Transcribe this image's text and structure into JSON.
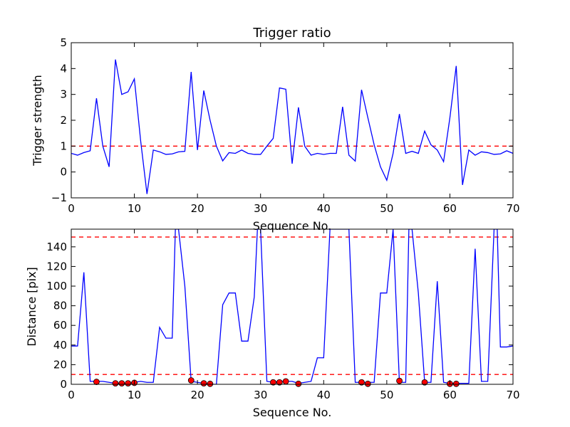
{
  "chart_data": [
    {
      "type": "line",
      "title": "Trigger ratio",
      "xlabel": "Sequence No.",
      "ylabel": "Trigger strength",
      "xlim": [
        0,
        70
      ],
      "ylim": [
        -1,
        5
      ],
      "xticks": [
        0,
        10,
        20,
        30,
        40,
        50,
        60,
        70
      ],
      "yticks": [
        -1,
        0,
        1,
        2,
        3,
        4,
        5
      ],
      "grid": false,
      "series": [
        {
          "color": "#0000ff",
          "x": [
            0,
            1,
            2,
            3,
            4,
            5,
            6,
            7,
            8,
            9,
            10,
            11,
            12,
            13,
            14,
            15,
            16,
            17,
            18,
            19,
            20,
            21,
            22,
            23,
            24,
            25,
            26,
            27,
            28,
            29,
            30,
            31,
            32,
            33,
            34,
            35,
            36,
            37,
            38,
            39,
            40,
            41,
            42,
            43,
            44,
            45,
            46,
            47,
            48,
            49,
            50,
            51,
            52,
            53,
            54,
            55,
            56,
            57,
            58,
            59,
            60,
            61,
            62,
            63,
            64,
            65,
            66,
            67,
            68,
            69,
            70
          ],
          "y": [
            0.72,
            0.65,
            0.75,
            0.82,
            2.85,
            1.0,
            0.2,
            4.35,
            3.0,
            3.1,
            3.6,
            1.2,
            -0.85,
            0.85,
            0.78,
            0.68,
            0.7,
            0.78,
            0.8,
            3.87,
            0.85,
            3.15,
            2.0,
            1.0,
            0.43,
            0.75,
            0.72,
            0.85,
            0.72,
            0.68,
            0.68,
            1.0,
            1.3,
            3.25,
            3.2,
            0.32,
            2.5,
            1.0,
            0.65,
            0.72,
            0.68,
            0.72,
            0.72,
            2.52,
            0.65,
            0.42,
            3.18,
            2.1,
            1.05,
            0.2,
            -0.32,
            0.72,
            2.24,
            0.72,
            0.8,
            0.72,
            1.58,
            1.05,
            0.85,
            0.4,
            2.1,
            4.1,
            -0.5,
            0.85,
            0.65,
            0.78,
            0.75,
            0.68,
            0.7,
            0.82,
            0.72
          ]
        }
      ],
      "reference_lines": [
        {
          "y": 1.0,
          "color": "#ff0000",
          "style": "dashed"
        }
      ]
    },
    {
      "type": "line",
      "title": "",
      "xlabel": "Sequence No.",
      "ylabel": "Distance [pix]",
      "xlim": [
        0,
        70
      ],
      "ylim": [
        0,
        158
      ],
      "xticks": [
        0,
        10,
        20,
        30,
        40,
        50,
        60,
        70
      ],
      "yticks": [
        0,
        20,
        40,
        60,
        80,
        100,
        120,
        140
      ],
      "grid": false,
      "series": [
        {
          "color": "#0000ff",
          "x": [
            0,
            1,
            2,
            3,
            4,
            5,
            6,
            7,
            8,
            9,
            10,
            11,
            12,
            13,
            14,
            15,
            16,
            16.5,
            17,
            18,
            19,
            20,
            21,
            22,
            23,
            24,
            25,
            26,
            27,
            28,
            29,
            29.5,
            30,
            31,
            32,
            33,
            34,
            35,
            36,
            37,
            38,
            39,
            40,
            41,
            42,
            43,
            44,
            45,
            46,
            47,
            48,
            49,
            50,
            51,
            52,
            53,
            53.5,
            54,
            55,
            56,
            57,
            58,
            59,
            60,
            61,
            62,
            63,
            64,
            65,
            66,
            67,
            67.5,
            68,
            69,
            70
          ],
          "y": [
            39,
            39,
            114,
            3,
            3,
            3,
            2,
            1,
            1,
            1,
            2,
            3,
            2,
            2,
            58,
            47,
            47,
            158,
            158,
            100,
            3,
            2,
            1,
            0,
            0,
            81,
            93,
            93,
            44,
            44,
            89,
            158,
            158,
            3,
            2,
            3,
            3,
            3,
            1,
            2,
            3,
            27,
            27,
            158,
            158,
            158,
            158,
            2,
            2,
            2,
            2,
            93,
            93,
            158,
            2,
            2,
            158,
            158,
            93,
            2,
            2,
            105,
            2,
            1,
            1,
            1,
            1,
            138,
            3,
            3,
            158,
            158,
            38,
            38,
            39
          ]
        },
        {
          "type": "scatter",
          "color": "#ff0000",
          "x": [
            4,
            7,
            8,
            9,
            10,
            19,
            21,
            22,
            32,
            33,
            34,
            36,
            46,
            47,
            52,
            56,
            60,
            61
          ],
          "y": [
            2.5,
            1,
            1,
            1,
            1.5,
            4,
            1,
            0.5,
            2,
            2,
            3,
            0.5,
            2,
            0.5,
            3.5,
            2,
            0.5,
            0.5
          ]
        }
      ],
      "reference_lines": [
        {
          "y": 150,
          "color": "#ff0000",
          "style": "dashed"
        },
        {
          "y": 10,
          "color": "#ff0000",
          "style": "dashed"
        }
      ]
    }
  ]
}
